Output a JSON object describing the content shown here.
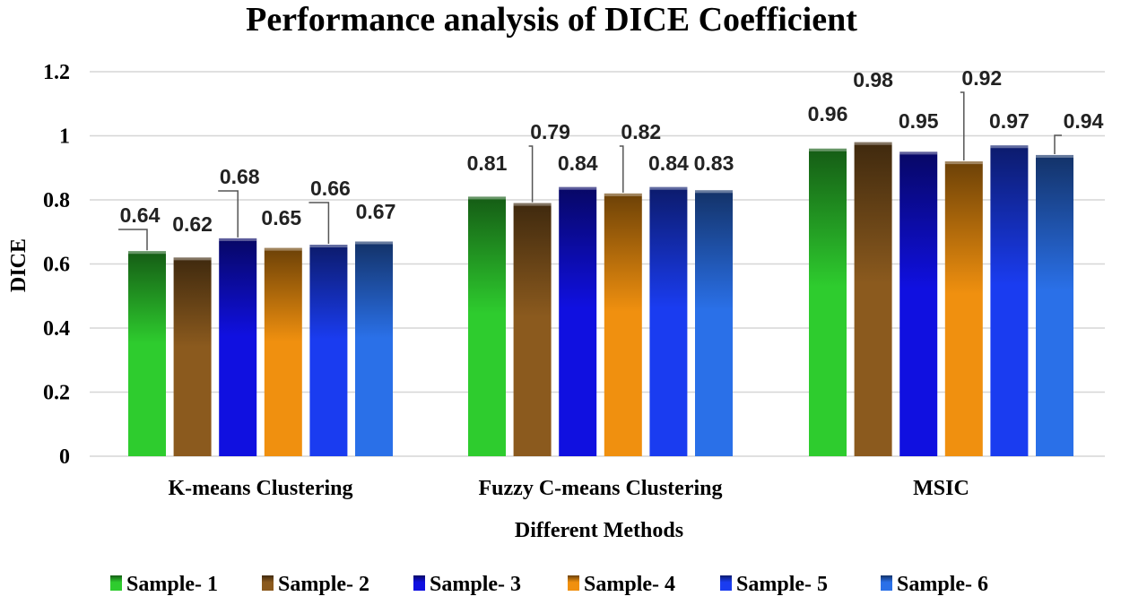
{
  "chart_data": {
    "type": "bar",
    "title": "Performance analysis of DICE Coefficient",
    "xlabel": "Different Methods",
    "ylabel": "DICE",
    "ylim": [
      0,
      1.2
    ],
    "yticks": [
      "0",
      "0.2",
      "0.4",
      "0.6",
      "0.8",
      "1",
      "1.2"
    ],
    "grid": true,
    "legend_position": "bottom",
    "categories": [
      "K-means Clustering",
      "Fuzzy C-means Clustering",
      "MSIC"
    ],
    "series": [
      {
        "name": "Sample- 1",
        "values": [
          0.64,
          0.81,
          0.96
        ],
        "labels": [
          "0.64",
          "0.81",
          "0.96"
        ],
        "color": "#2ecc2e"
      },
      {
        "name": "Sample- 2",
        "values": [
          0.62,
          0.79,
          0.98
        ],
        "labels": [
          "0.62",
          "0.79",
          "0.98"
        ],
        "color": "#8b5a1e"
      },
      {
        "name": "Sample- 3",
        "values": [
          0.68,
          0.84,
          0.95
        ],
        "labels": [
          "0.68",
          "0.84",
          "0.95"
        ],
        "color": "#1010e0"
      },
      {
        "name": "Sample- 4",
        "values": [
          0.65,
          0.82,
          0.92
        ],
        "labels": [
          "0.65",
          "0.82",
          "0.92"
        ],
        "color": "#f0900f"
      },
      {
        "name": "Sample- 5",
        "values": [
          0.66,
          0.84,
          0.97
        ],
        "labels": [
          "0.66",
          "0.84",
          "0.97"
        ],
        "color": "#1a3cf0"
      },
      {
        "name": "Sample- 6",
        "values": [
          0.67,
          0.83,
          0.94
        ],
        "labels": [
          "0.67",
          "0.83",
          "0.94"
        ],
        "color": "#2a70e8"
      }
    ]
  }
}
